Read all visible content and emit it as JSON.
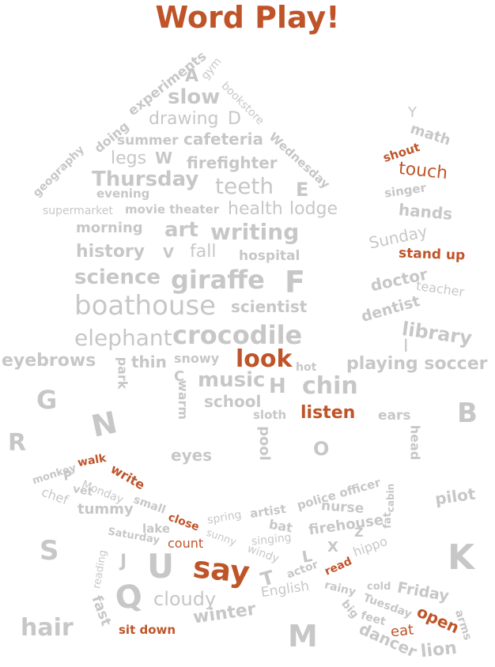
{
  "title": "Word Play!",
  "colors": {
    "highlight": "#bf5429",
    "word": "#c7c7c7",
    "background": "#ffffff"
  },
  "words": {
    "A": "A",
    "gym": "gym",
    "experiments": "experiments",
    "doing": "doing",
    "slow": "slow",
    "bookstore": "bookstore",
    "drawing": "drawing",
    "D": "D",
    "geography": "geography",
    "summer": "summer",
    "cafeteria": "cafeteria",
    "Wednesday": "Wednesday",
    "legs": "legs",
    "W": "W",
    "firefighter": "firefighter",
    "Thursday": "Thursday",
    "teeth": "teeth",
    "E": "E",
    "evening": "evening",
    "supermarket": "supermarket",
    "movie_theater": "movie theater",
    "health": "health",
    "lodge": "lodge",
    "morning": "morning",
    "art": "art",
    "writing": "writing",
    "history": "history",
    "V": "V",
    "fall": "fall",
    "hospital": "hospital",
    "science": "science",
    "giraffe": "giraffe",
    "F": "F",
    "boathouse": "boathouse",
    "scientist": "scientist",
    "elephant": "elephant",
    "crocodile": "crocodile",
    "Y": "Y",
    "math": "math",
    "shout": "shout",
    "touch": "touch",
    "singer": "singer",
    "hands": "hands",
    "Sunday": "Sunday",
    "stand_up": "stand up",
    "doctor": "doctor",
    "teacher": "teacher",
    "dentist": "dentist",
    "library": "library",
    "I": "I",
    "eyebrows": "eyebrows",
    "park": "park",
    "thin": "thin",
    "snowy": "snowy",
    "look": "look",
    "hot": "hot",
    "playing_soccer": "playing soccer",
    "C": "C",
    "warm": "warm",
    "music": "music",
    "H": "H",
    "chin": "chin",
    "school": "school",
    "G": "G",
    "N": "N",
    "sloth": "sloth",
    "listen": "listen",
    "ears": "ears",
    "B": "B",
    "head": "head",
    "R": "R",
    "pool": "pool",
    "eyes": "eyes",
    "O": "O",
    "monkey": "monkey",
    "walk": "walk",
    "write": "write",
    "P": "P",
    "vet": "vet",
    "Monday": "Monday",
    "chef": "chef",
    "small": "small",
    "tummy": "tummy",
    "police_officer": "police officer",
    "cabin": "cabin",
    "pilot": "pilot",
    "nurse": "nurse",
    "close": "close",
    "spring": "spring",
    "artist": "artist",
    "bat": "bat",
    "lake": "lake",
    "Saturday": "Saturday",
    "count": "count",
    "sunny": "sunny",
    "singing": "singing",
    "firehouse": "firehouse",
    "fat": "fat",
    "hippo": "hippo",
    "S": "S",
    "Z": "Z",
    "X": "X",
    "L": "L",
    "K": "K",
    "reading": "reading",
    "J": "J",
    "U": "U",
    "say": "say",
    "windy": "windy",
    "T": "T",
    "actor": "actor",
    "read": "read",
    "Q": "Q",
    "cloudy": "cloudy",
    "English": "English",
    "rainy": "rainy",
    "cold": "cold",
    "Friday": "Friday",
    "fast": "fast",
    "winter": "winter",
    "Tuesday": "Tuesday",
    "big": "big",
    "feet": "feet",
    "open": "open",
    "arms": "arms",
    "hair": "hair",
    "sit_down": "sit down",
    "M": "M",
    "eat": "eat",
    "dancer": "dancer",
    "lion": "lion"
  }
}
